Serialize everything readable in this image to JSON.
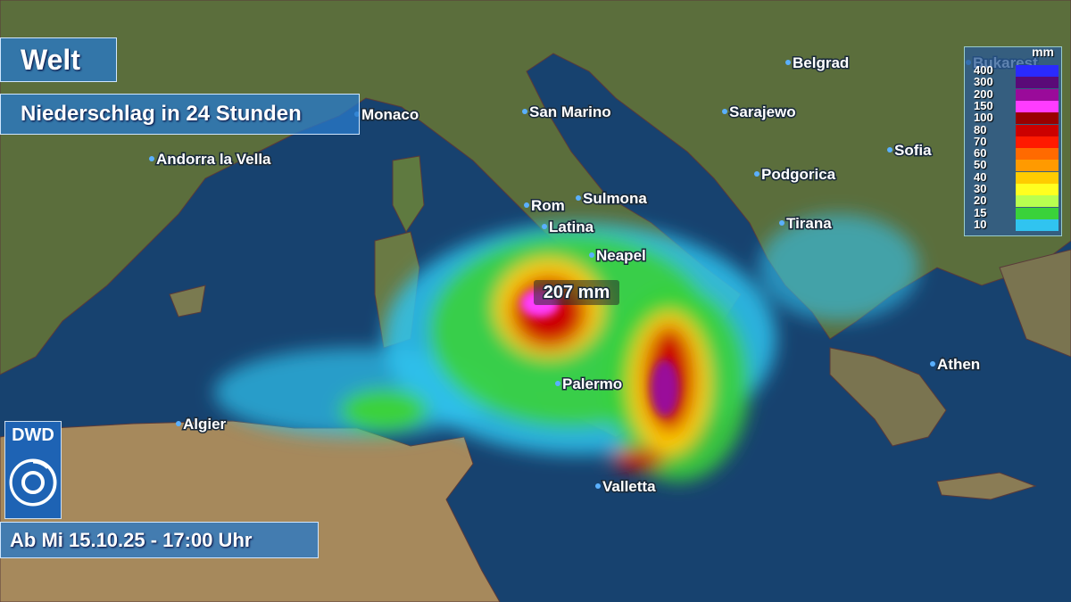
{
  "header": {
    "title": "Welt",
    "subtitle": "Niederschlag in 24 Stunden"
  },
  "cities": [
    "Monaco",
    "Andorra la Vella",
    "San Marino",
    "Belgrad",
    "Bukarest",
    "Sarajewo",
    "Sofia",
    "Podgorica",
    "Tirana",
    "Rom",
    "Sulmona",
    "Latina",
    "Neapel",
    "Palermo",
    "Athen",
    "Algier",
    "Valletta"
  ],
  "max_label": "207 mm",
  "legend": {
    "unit": "mm",
    "levels": [
      400,
      300,
      200,
      150,
      100,
      80,
      70,
      60,
      50,
      40,
      30,
      20,
      15,
      10
    ],
    "colors": [
      "#2a2aff",
      "#5a0a78",
      "#9a0a9a",
      "#ff3cff",
      "#9a0000",
      "#cc0000",
      "#ff1a00",
      "#ff6a00",
      "#ff9a00",
      "#ffcc00",
      "#ffff20",
      "#b8ff50",
      "#3ad23a",
      "#30c4f0"
    ]
  },
  "logo": "DWD",
  "footer": {
    "valid_from": "Ab Mi 15.10.25 - 17:00 Uhr"
  }
}
